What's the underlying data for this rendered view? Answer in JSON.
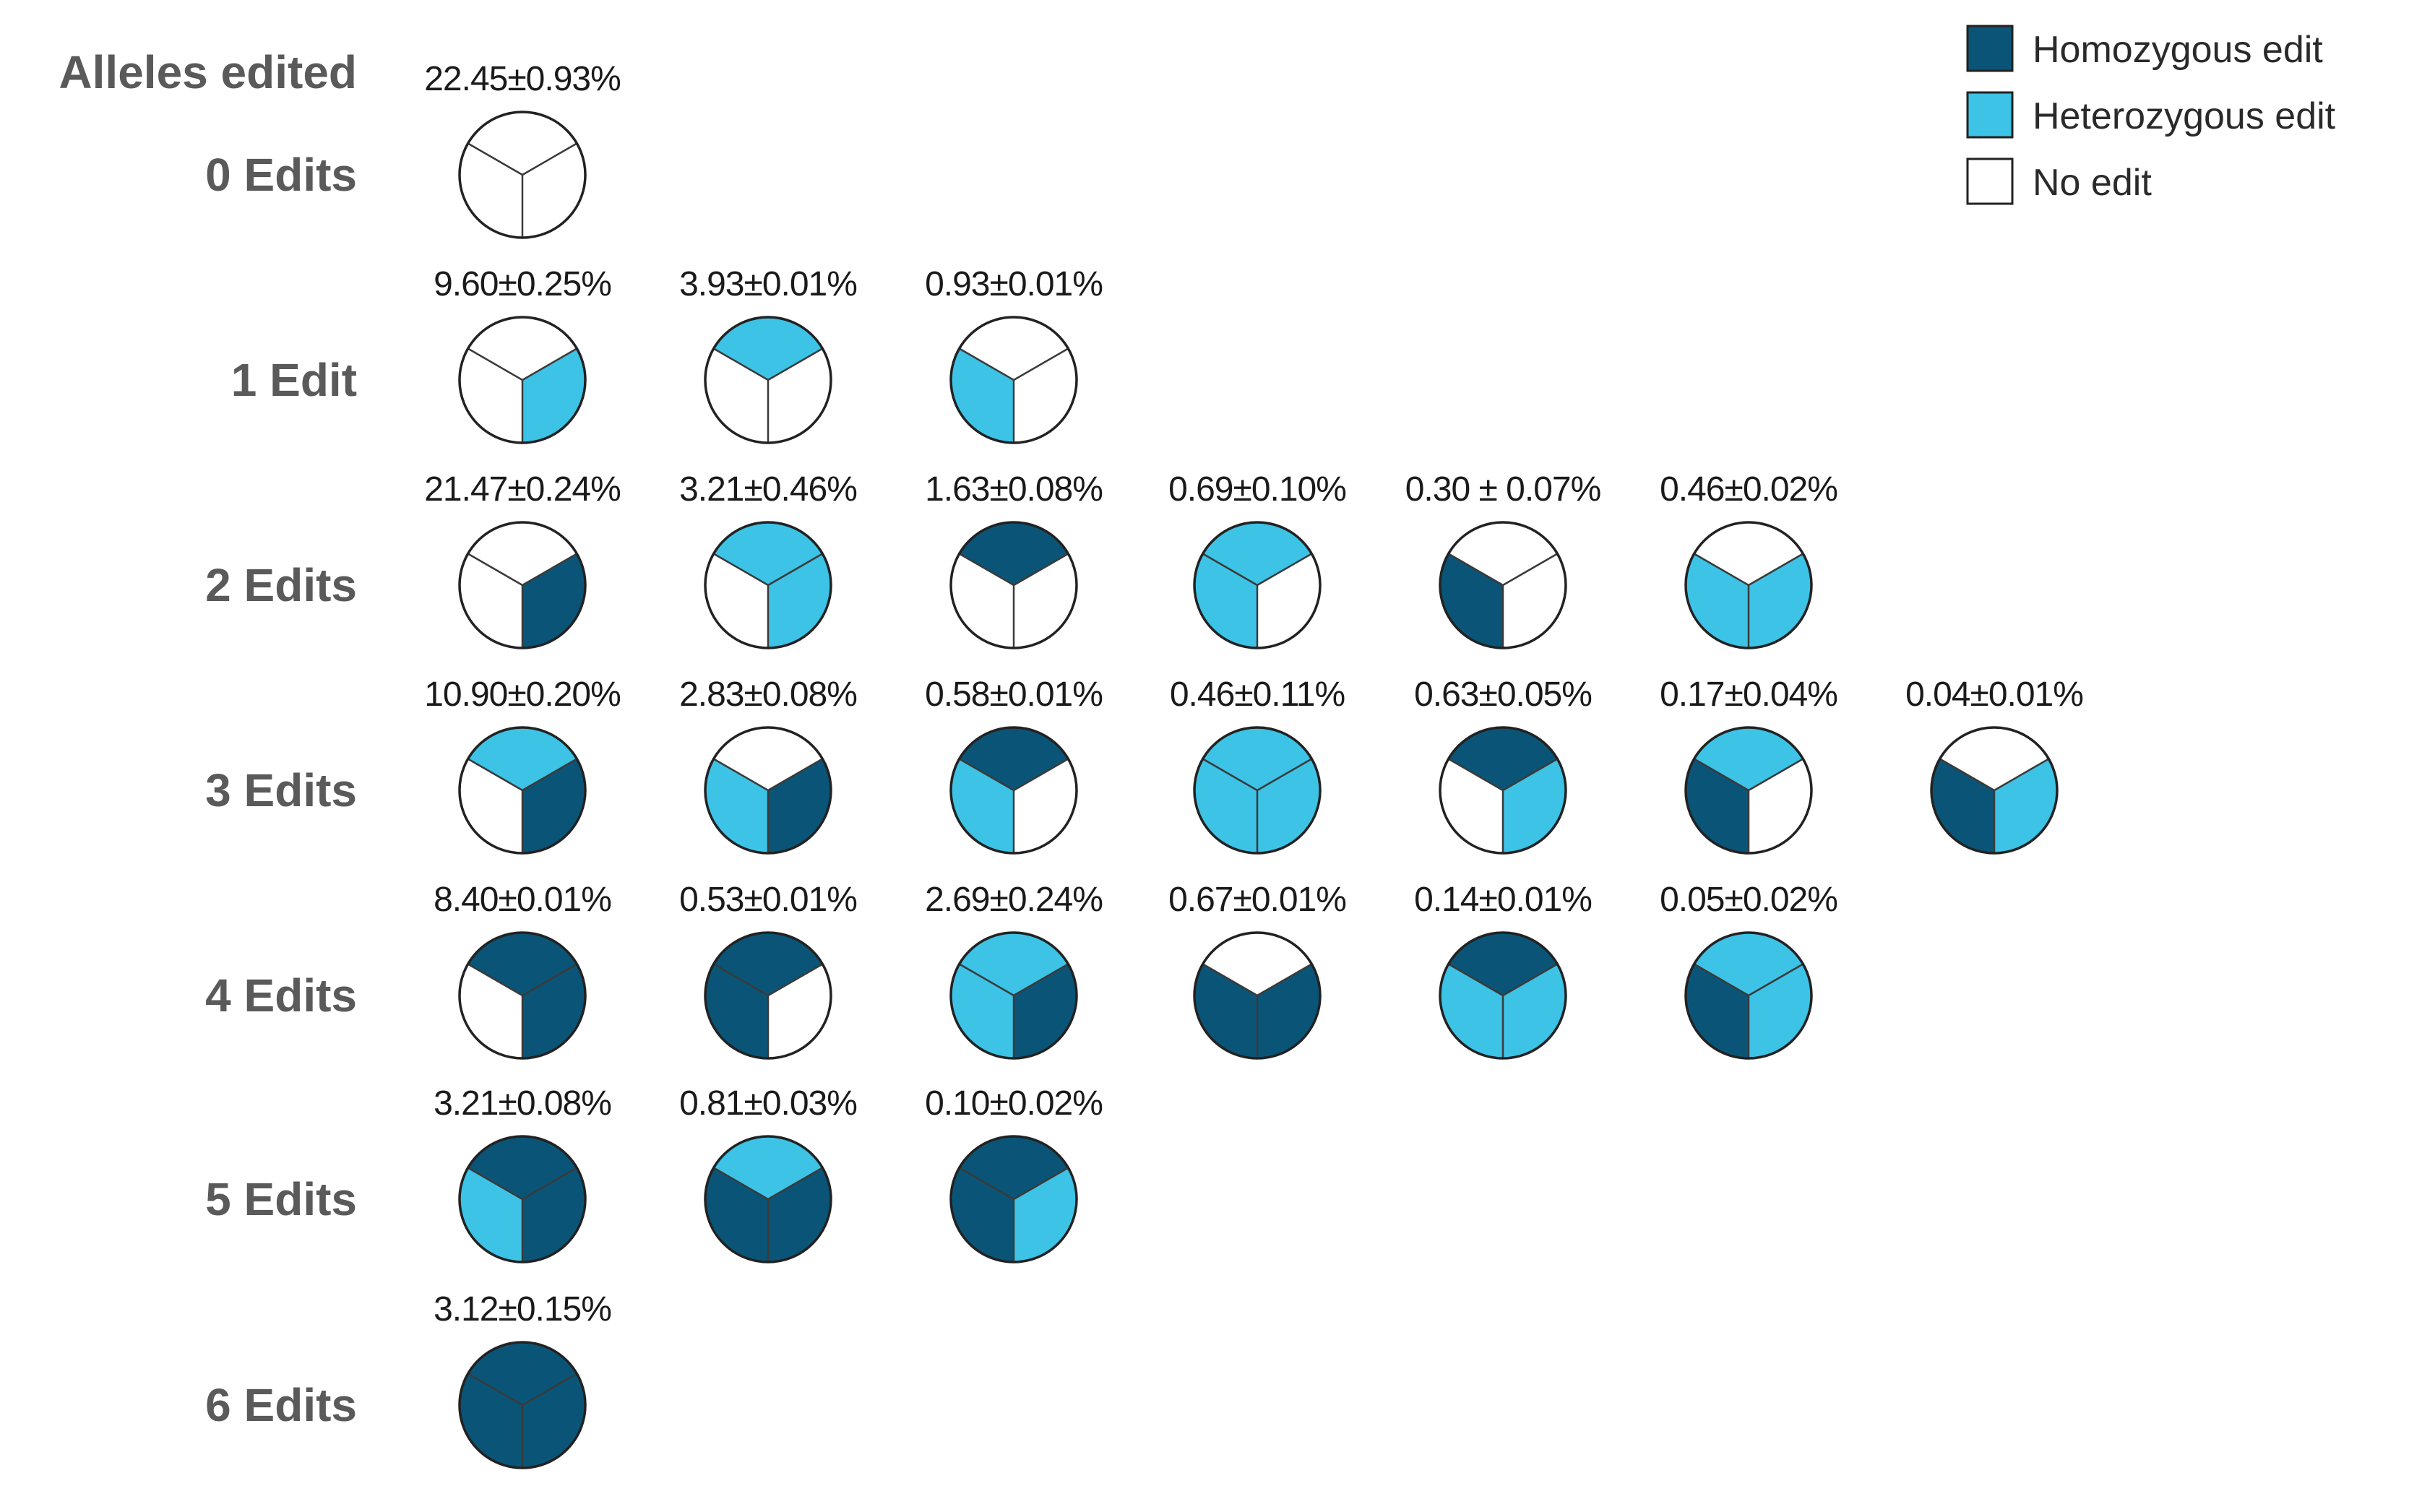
{
  "header": "Alleles edited",
  "colors": {
    "hom": "#0a5577",
    "het": "#3cc3e6",
    "none": "#ffffff",
    "stroke": "#222222"
  },
  "legend": [
    {
      "key": "hom",
      "label": "Homozygous edit"
    },
    {
      "key": "het",
      "label": "Heterozygous edit"
    },
    {
      "key": "none",
      "label": "No edit"
    }
  ],
  "rows": [
    {
      "label": "0 Edits",
      "items": [
        {
          "pct": "22.45±0.93%",
          "s": [
            "none",
            "none",
            "none"
          ]
        }
      ]
    },
    {
      "label": "1 Edit",
      "items": [
        {
          "pct": "9.60±0.25%",
          "s": [
            "none",
            "het",
            "none"
          ]
        },
        {
          "pct": "3.93±0.01%",
          "s": [
            "het",
            "none",
            "none"
          ]
        },
        {
          "pct": "0.93±0.01%",
          "s": [
            "none",
            "none",
            "het"
          ]
        }
      ]
    },
    {
      "label": "2 Edits",
      "items": [
        {
          "pct": "21.47±0.24%",
          "s": [
            "none",
            "hom",
            "none"
          ]
        },
        {
          "pct": "3.21±0.46%",
          "s": [
            "het",
            "het",
            "none"
          ]
        },
        {
          "pct": "1.63±0.08%",
          "s": [
            "hom",
            "none",
            "none"
          ]
        },
        {
          "pct": "0.69±0.10%",
          "s": [
            "het",
            "none",
            "het"
          ]
        },
        {
          "pct": "0.30 ± 0.07%",
          "s": [
            "none",
            "none",
            "hom"
          ]
        },
        {
          "pct": "0.46±0.02%",
          "s": [
            "none",
            "het",
            "het"
          ]
        }
      ]
    },
    {
      "label": "3 Edits",
      "items": [
        {
          "pct": "10.90±0.20%",
          "s": [
            "het",
            "hom",
            "none"
          ]
        },
        {
          "pct": "2.83±0.08%",
          "s": [
            "none",
            "hom",
            "het"
          ]
        },
        {
          "pct": "0.58±0.01%",
          "s": [
            "hom",
            "none",
            "het"
          ]
        },
        {
          "pct": "0.46±0.11%",
          "s": [
            "het",
            "het",
            "het"
          ]
        },
        {
          "pct": "0.63±0.05%",
          "s": [
            "hom",
            "het",
            "none"
          ]
        },
        {
          "pct": "0.17±0.04%",
          "s": [
            "het",
            "none",
            "hom"
          ]
        },
        {
          "pct": "0.04±0.01%",
          "s": [
            "none",
            "het",
            "hom"
          ]
        }
      ]
    },
    {
      "label": "4 Edits",
      "items": [
        {
          "pct": "8.40±0.01%",
          "s": [
            "hom",
            "hom",
            "none"
          ]
        },
        {
          "pct": "0.53±0.01%",
          "s": [
            "hom",
            "none",
            "hom"
          ]
        },
        {
          "pct": "2.69±0.24%",
          "s": [
            "het",
            "hom",
            "het"
          ]
        },
        {
          "pct": "0.67±0.01%",
          "s": [
            "none",
            "hom",
            "hom"
          ]
        },
        {
          "pct": "0.14±0.01%",
          "s": [
            "hom",
            "het",
            "het"
          ]
        },
        {
          "pct": "0.05±0.02%",
          "s": [
            "het",
            "het",
            "hom"
          ]
        }
      ]
    },
    {
      "label": "5 Edits",
      "items": [
        {
          "pct": "3.21±0.08%",
          "s": [
            "hom",
            "hom",
            "het"
          ]
        },
        {
          "pct": "0.81±0.03%",
          "s": [
            "het",
            "hom",
            "hom"
          ]
        },
        {
          "pct": "0.10±0.02%",
          "s": [
            "hom",
            "het",
            "hom"
          ]
        }
      ]
    },
    {
      "label": "6 Edits",
      "items": [
        {
          "pct": "3.12±0.15%",
          "s": [
            "hom",
            "hom",
            "hom"
          ]
        }
      ]
    }
  ]
}
